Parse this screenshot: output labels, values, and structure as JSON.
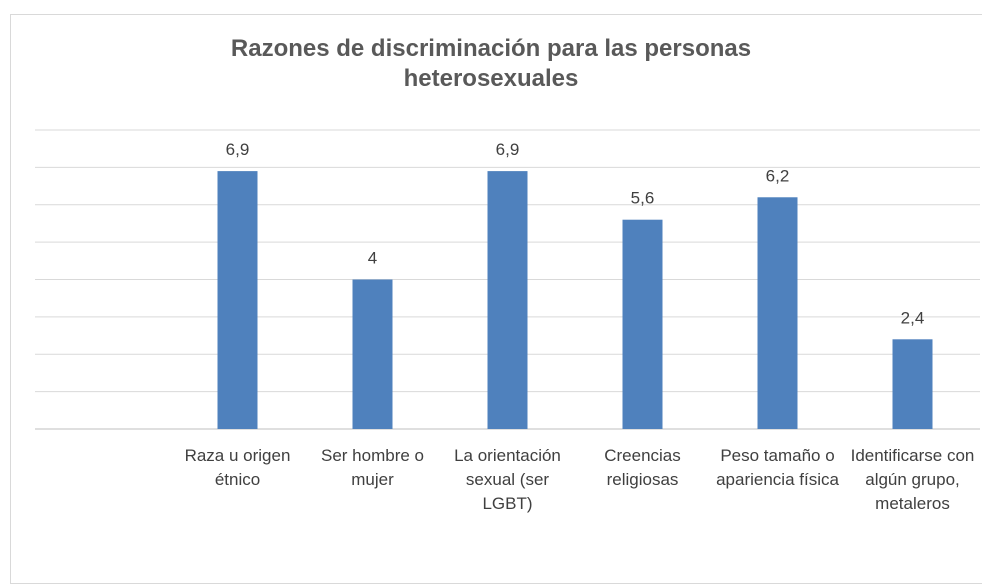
{
  "chart_data": {
    "type": "bar",
    "title": "Razones de discriminación para las personas heterosexuales",
    "categories": [
      null,
      "Raza u origen étnico",
      "Ser hombre o mujer",
      "La orientación sexual (ser LGBT)",
      "Creencias religiosas",
      "Peso tamaño o apariencia física",
      "Identificarse con algún grupo, metaleros"
    ],
    "values": [
      null,
      6.9,
      4,
      6.9,
      5.6,
      6.2,
      2.4
    ],
    "value_labels": [
      null,
      "6,9",
      "4",
      "6,9",
      "5,6",
      "6,2",
      "2,4"
    ],
    "color": "#4f81bd",
    "ylim": [
      0,
      8
    ],
    "yticks": [
      0,
      1,
      2,
      3,
      4,
      5,
      6,
      7,
      8
    ],
    "grid": true
  }
}
